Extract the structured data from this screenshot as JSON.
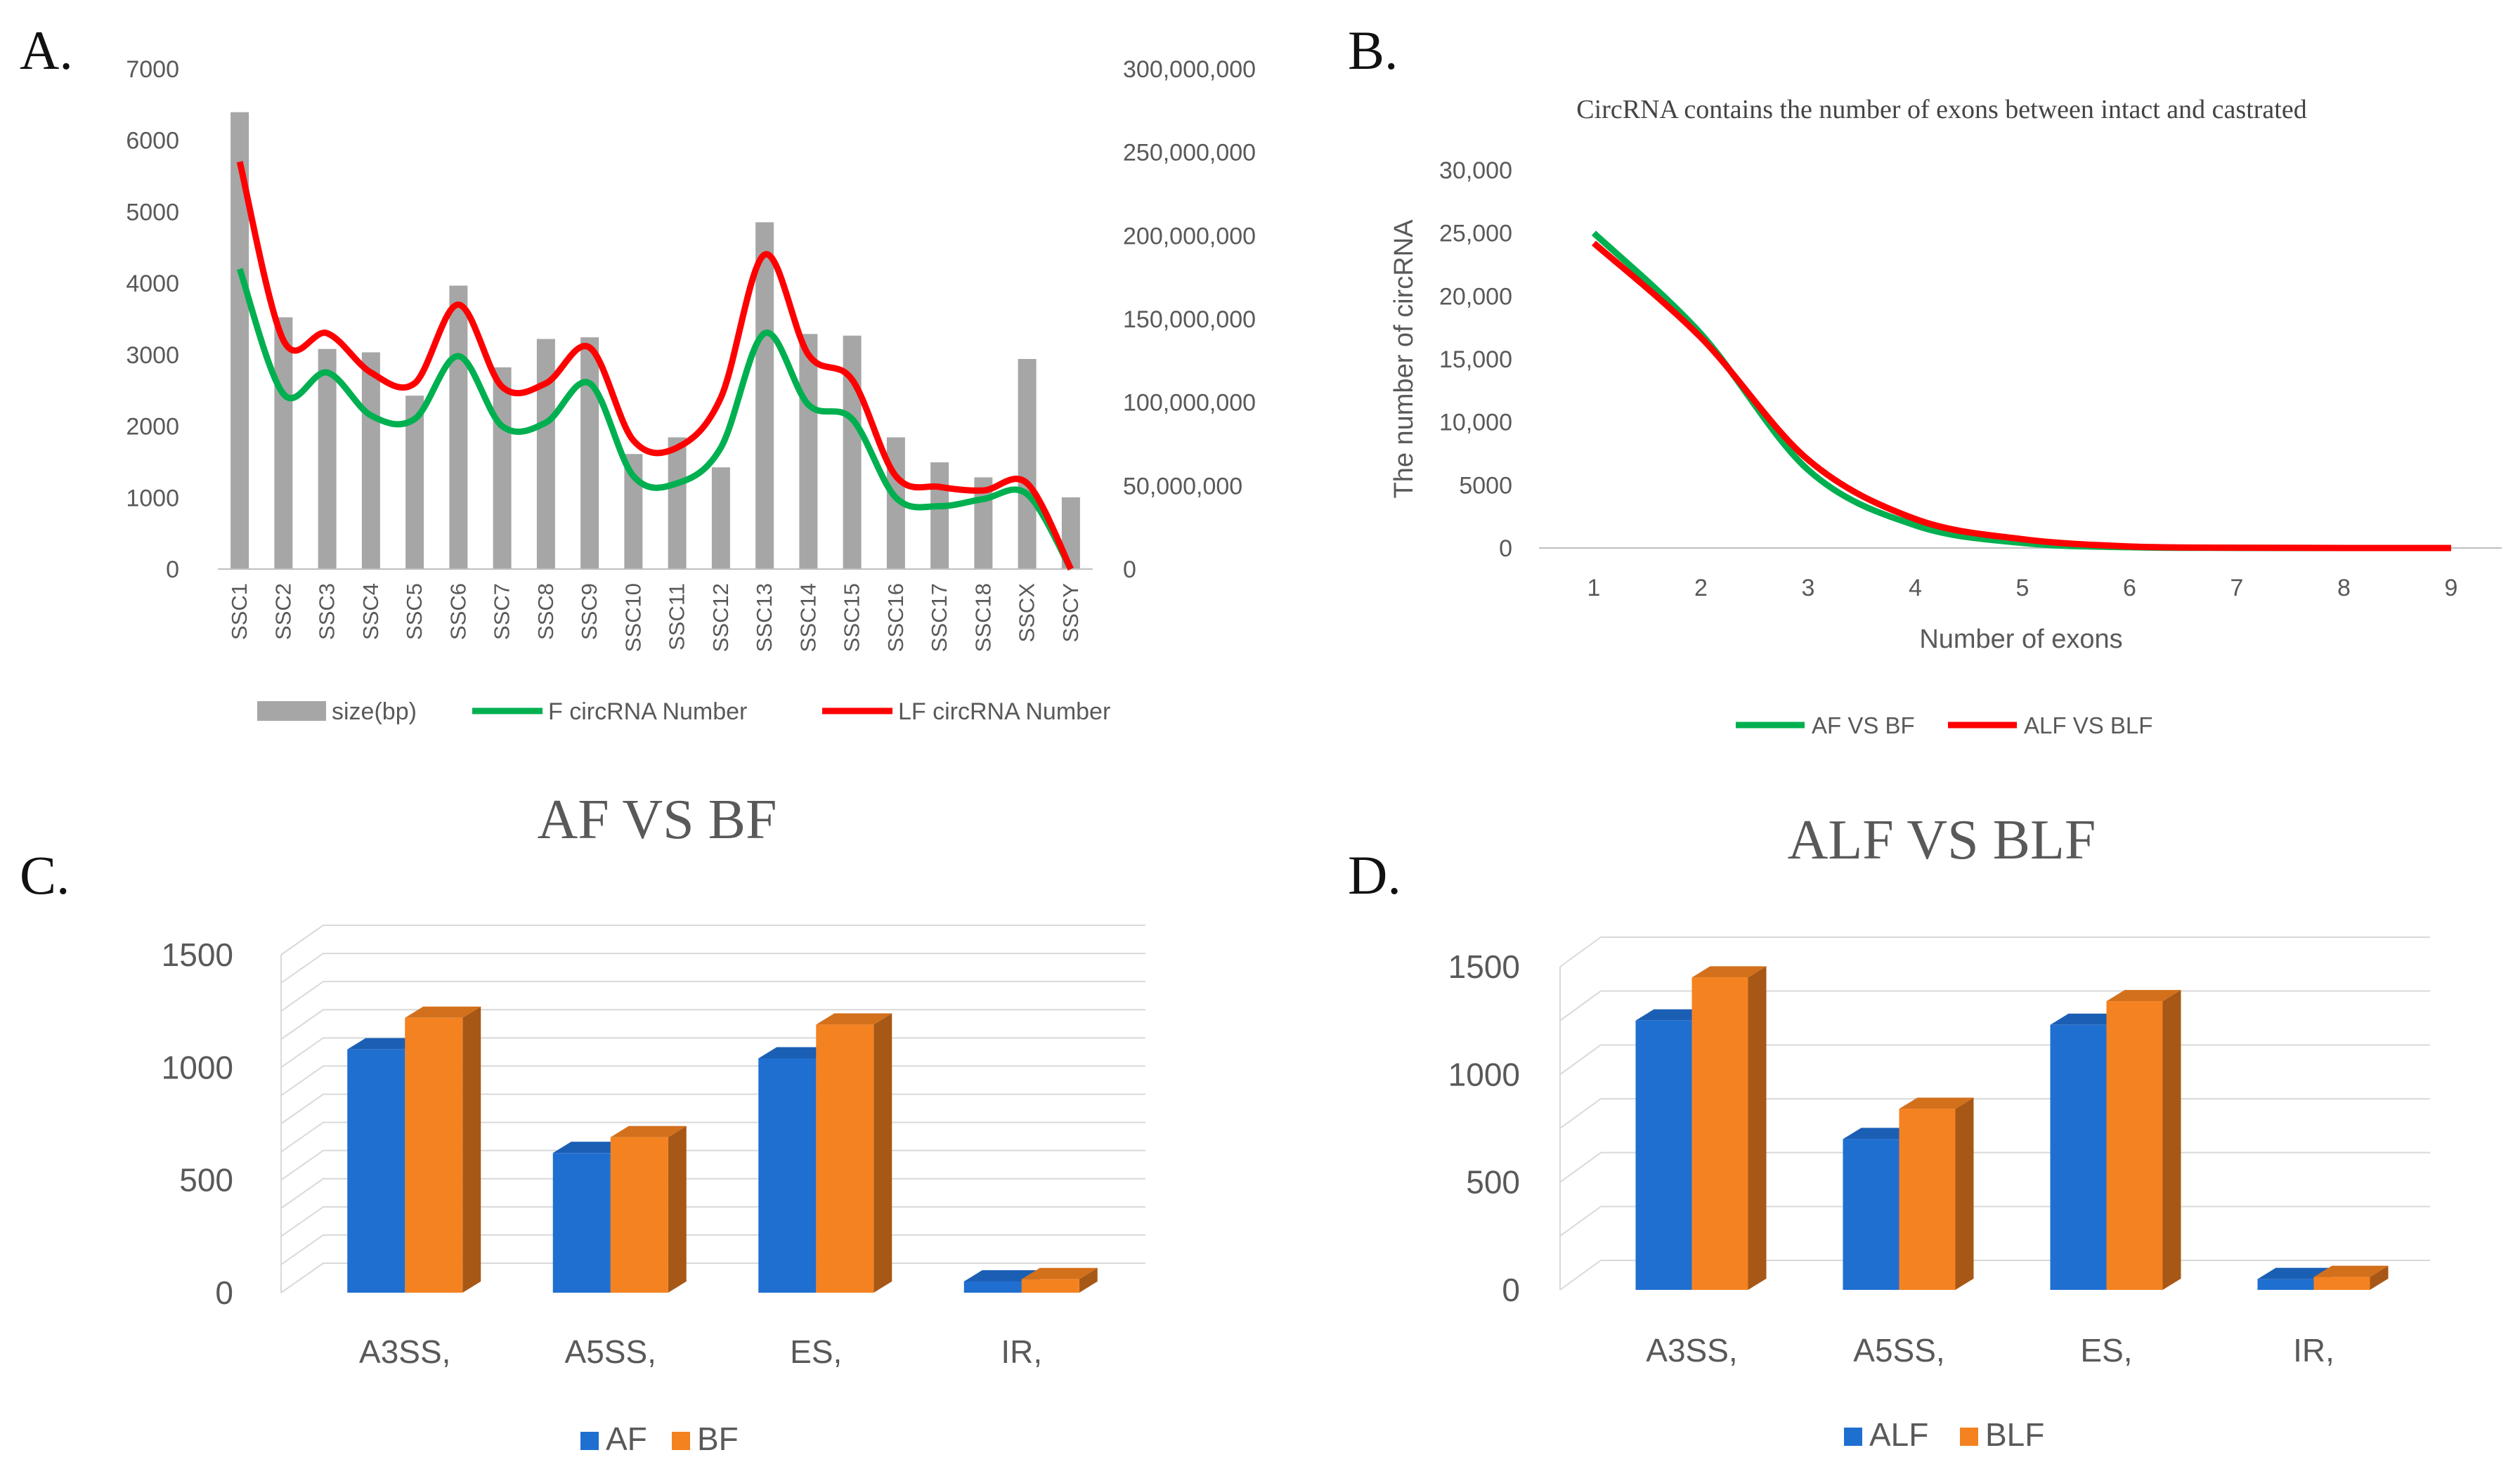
{
  "panels": {
    "A": {
      "letter": "A."
    },
    "B": {
      "letter": "B."
    },
    "C": {
      "letter": "C."
    },
    "D": {
      "letter": "D."
    }
  },
  "colors": {
    "grey_bar": "#A6A6A6",
    "green": "#00B050",
    "red": "#FF0000",
    "blue": "#1F6FD1",
    "orange": "#F58220",
    "axis_text": "#595959",
    "grid": "#D9D9D9"
  },
  "chart_data": [
    {
      "panel": "A",
      "type": "bar",
      "title": "",
      "categories": [
        "SSC1",
        "SSC2",
        "SSC3",
        "SSC4",
        "SSC5",
        "SSC6",
        "SSC7",
        "SSC8",
        "SSC9",
        "SSC10",
        "SSC11",
        "SSC12",
        "SSC13",
        "SSC14",
        "SSC15",
        "SSC16",
        "SSC17",
        "SSC18",
        "SSCX",
        "SSCY"
      ],
      "bar_series": {
        "name": "size(bp)",
        "axis": "right",
        "values": [
          274000000,
          151000000,
          132000000,
          130000000,
          104000000,
          170000000,
          121000000,
          138000000,
          139000000,
          69000000,
          79000000,
          61000000,
          208000000,
          141000000,
          140000000,
          79000000,
          64000000,
          55000000,
          126000000,
          43000000
        ]
      },
      "line_series": [
        {
          "name": "F circRNA Number",
          "axis": "left",
          "values": [
            4200,
            2450,
            2750,
            2150,
            2100,
            2980,
            2000,
            2050,
            2600,
            1300,
            1200,
            1700,
            3300,
            2300,
            2100,
            1000,
            880,
            980,
            1050,
            0
          ]
        },
        {
          "name": "LF circRNA Number",
          "axis": "left",
          "values": [
            5700,
            3200,
            3300,
            2750,
            2600,
            3700,
            2550,
            2600,
            3100,
            1800,
            1700,
            2400,
            4400,
            3000,
            2650,
            1300,
            1150,
            1100,
            1200,
            0
          ]
        }
      ],
      "left_axis": {
        "ylim": [
          0,
          7000
        ],
        "ticks": [
          "0",
          "1000",
          "2000",
          "3000",
          "4000",
          "5000",
          "6000",
          "7000"
        ]
      },
      "right_axis": {
        "ylim": [
          0,
          300000000
        ],
        "ticks": [
          "0",
          "50,000,000",
          "100,000,000",
          "150,000,000",
          "200,000,000",
          "250,000,000",
          "300,000,000"
        ]
      },
      "grid": false,
      "legend": "bottom"
    },
    {
      "panel": "B",
      "type": "line",
      "title": "CircRNA contains the number of exons between intact and castrated",
      "xlabel": "Number of exons",
      "ylabel": "The number of circRNA",
      "x": [
        1,
        2,
        3,
        4,
        5,
        6,
        7,
        8,
        9
      ],
      "x_ticks": [
        "1",
        "2",
        "3",
        "4",
        "5",
        "6",
        "7",
        "8",
        "9"
      ],
      "series": [
        {
          "name": "AF VS BF",
          "values": [
            25000,
            17000,
            6200,
            1800,
            400,
            60,
            10,
            0,
            0
          ]
        },
        {
          "name": "ALF VS BLF",
          "values": [
            24200,
            16700,
            7000,
            2300,
            700,
            120,
            20,
            0,
            0
          ]
        }
      ],
      "ylim": [
        0,
        30000
      ],
      "y_ticks": [
        "0",
        "5000",
        "10,000",
        "15,000",
        "20,000",
        "25,000",
        "30,000"
      ],
      "grid": false,
      "legend": "bottom"
    },
    {
      "panel": "C",
      "type": "bar",
      "title": "AF VS BF",
      "categories": [
        "A3SS,",
        "A5SS,",
        "ES,",
        "IR,"
      ],
      "series": [
        {
          "name": "AF",
          "values": [
            1080,
            620,
            1040,
            50
          ]
        },
        {
          "name": "BF",
          "values": [
            1220,
            690,
            1190,
            60
          ]
        }
      ],
      "ylim": [
        0,
        1500
      ],
      "y_ticks": [
        "0",
        "500",
        "1000",
        "1500"
      ],
      "grid": true,
      "legend": "bottom"
    },
    {
      "panel": "D",
      "type": "bar",
      "title": "ALF VS BLF",
      "categories": [
        "A3SS,",
        "A5SS,",
        "ES,",
        "IR,"
      ],
      "series": [
        {
          "name": "ALF",
          "values": [
            1250,
            700,
            1230,
            50
          ]
        },
        {
          "name": "BLF",
          "values": [
            1450,
            840,
            1340,
            60
          ]
        }
      ],
      "ylim": [
        0,
        1500
      ],
      "y_ticks": [
        "0",
        "500",
        "1000",
        "1500"
      ],
      "grid": true,
      "legend": "bottom"
    }
  ]
}
